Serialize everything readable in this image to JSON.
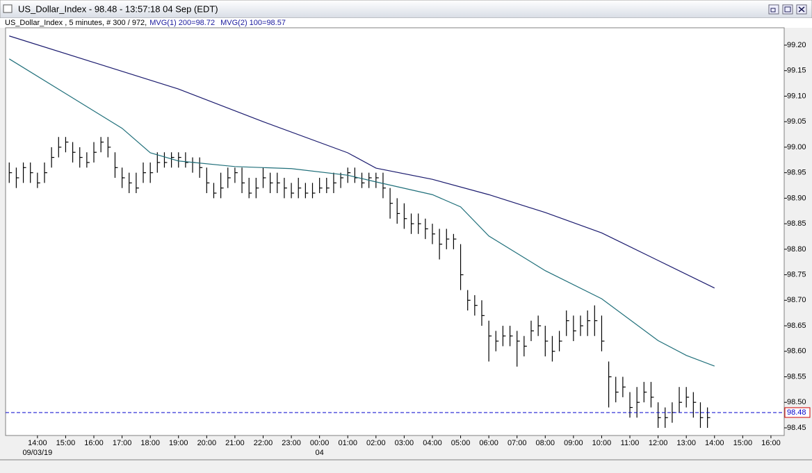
{
  "window": {
    "title": "US_Dollar_Index - 98.48 - 13:57:18  04 Sep (EDT)"
  },
  "chart_data": {
    "type": "ohlc",
    "subtitle": "US_Dollar_Index , 5 minutes, # 300 / 972,",
    "bar_color": "#000000",
    "x": [
      13,
      13.25,
      13.5,
      13.75,
      14,
      14.25,
      14.5,
      14.75,
      15,
      15.25,
      15.5,
      15.75,
      16,
      16.25,
      16.5,
      16.75,
      17,
      17.25,
      17.5,
      17.75,
      18,
      18.25,
      18.5,
      18.75,
      19,
      19.25,
      19.5,
      19.75,
      20,
      20.25,
      20.5,
      20.75,
      21,
      21.25,
      21.5,
      21.75,
      22,
      22.25,
      22.5,
      22.75,
      23,
      23.25,
      23.5,
      23.75,
      24,
      24.25,
      24.5,
      24.75,
      25,
      25.25,
      25.5,
      25.75,
      26,
      26.25,
      26.5,
      26.75,
      27,
      27.25,
      27.5,
      27.75,
      28,
      28.25,
      28.5,
      28.75,
      29,
      29.25,
      29.5,
      29.75,
      30,
      30.25,
      30.5,
      30.75,
      31,
      31.25,
      31.5,
      31.75,
      32,
      32.25,
      32.5,
      32.75,
      33,
      33.25,
      33.5,
      33.75,
      34,
      34.25,
      34.5,
      34.75,
      35,
      35.25,
      35.5,
      35.75,
      36,
      36.25,
      36.5,
      36.75,
      37,
      37.25,
      37.5,
      37.75
    ],
    "high": [
      98.97,
      98.96,
      98.97,
      98.97,
      98.95,
      98.97,
      99.0,
      99.02,
      99.02,
      99.01,
      99.0,
      98.99,
      99.01,
      99.02,
      99.02,
      98.99,
      98.96,
      98.95,
      98.95,
      98.97,
      98.97,
      98.99,
      98.99,
      98.99,
      98.99,
      98.99,
      98.98,
      98.98,
      98.96,
      98.93,
      98.95,
      98.96,
      98.96,
      98.96,
      98.94,
      98.94,
      98.96,
      98.95,
      98.95,
      98.94,
      98.93,
      98.94,
      98.93,
      98.93,
      98.94,
      98.94,
      98.95,
      98.95,
      98.96,
      98.96,
      98.95,
      98.95,
      98.95,
      98.95,
      98.92,
      98.9,
      98.89,
      98.87,
      98.87,
      98.86,
      98.85,
      98.84,
      98.84,
      98.83,
      98.81,
      98.72,
      98.71,
      98.7,
      98.66,
      98.64,
      98.65,
      98.65,
      98.64,
      98.63,
      98.66,
      98.67,
      98.65,
      98.63,
      98.64,
      98.68,
      98.67,
      98.67,
      98.68,
      98.69,
      98.67,
      98.58,
      98.55,
      98.55,
      98.52,
      98.53,
      98.54,
      98.54,
      98.5,
      98.49,
      98.5,
      98.53,
      98.53,
      98.52,
      98.5,
      98.49
    ],
    "low": [
      98.93,
      98.92,
      98.93,
      98.93,
      98.92,
      98.93,
      98.96,
      98.98,
      98.99,
      98.97,
      98.96,
      98.96,
      98.97,
      98.99,
      98.98,
      98.94,
      98.92,
      98.91,
      98.91,
      98.93,
      98.93,
      98.95,
      98.96,
      98.96,
      98.96,
      98.96,
      98.95,
      98.94,
      98.91,
      98.9,
      98.9,
      98.92,
      98.93,
      98.91,
      98.9,
      98.9,
      98.92,
      98.91,
      98.91,
      98.9,
      98.9,
      98.9,
      98.9,
      98.9,
      98.91,
      98.91,
      98.91,
      98.92,
      98.93,
      98.93,
      98.92,
      98.92,
      98.92,
      98.9,
      98.86,
      98.85,
      98.84,
      98.83,
      98.83,
      98.82,
      98.81,
      98.78,
      98.8,
      98.8,
      98.72,
      98.68,
      98.67,
      98.65,
      98.58,
      98.6,
      98.61,
      98.61,
      98.57,
      98.59,
      98.62,
      98.63,
      98.59,
      98.58,
      98.6,
      98.63,
      98.62,
      98.63,
      98.63,
      98.63,
      98.6,
      98.49,
      98.5,
      98.51,
      98.47,
      98.47,
      98.5,
      98.49,
      98.45,
      98.45,
      98.46,
      98.48,
      98.49,
      98.47,
      98.45,
      98.45
    ],
    "close": [
      98.95,
      98.94,
      98.96,
      98.95,
      98.93,
      98.95,
      98.98,
      99.0,
      99.01,
      98.99,
      98.98,
      98.97,
      98.99,
      99.01,
      99.0,
      98.96,
      98.94,
      98.93,
      98.92,
      98.95,
      98.95,
      98.97,
      98.97,
      98.98,
      98.98,
      98.97,
      98.97,
      98.96,
      98.93,
      98.91,
      98.92,
      98.94,
      98.95,
      98.93,
      98.91,
      98.92,
      98.94,
      98.93,
      98.93,
      98.92,
      98.91,
      98.92,
      98.91,
      98.91,
      98.92,
      98.92,
      98.93,
      98.94,
      98.95,
      98.94,
      98.93,
      98.94,
      98.94,
      98.92,
      98.89,
      98.87,
      98.86,
      98.85,
      98.85,
      98.84,
      98.83,
      98.81,
      98.82,
      98.82,
      98.75,
      98.7,
      98.69,
      98.67,
      98.63,
      98.62,
      98.63,
      98.63,
      98.62,
      98.61,
      98.64,
      98.65,
      98.62,
      98.6,
      98.62,
      98.66,
      98.64,
      98.65,
      98.66,
      98.66,
      98.62,
      98.55,
      98.52,
      98.53,
      98.49,
      98.5,
      98.52,
      98.51,
      98.47,
      98.47,
      98.48,
      98.5,
      98.51,
      98.5,
      98.47,
      98.47
    ],
    "series": [
      {
        "name": "MVG(1) 200=98.72",
        "color": "#1a1a6e",
        "x": [
          13,
          16,
          19,
          22,
          25,
          26,
          28,
          30,
          32,
          34,
          36,
          38
        ],
        "values": [
          99.218,
          99.166,
          99.114,
          99.05,
          98.989,
          98.959,
          98.937,
          98.907,
          98.872,
          98.832,
          98.778,
          98.724
        ]
      },
      {
        "name": "MVG(2) 100=98.57",
        "color": "#1f6f7a",
        "x": [
          13,
          15,
          17,
          18,
          19,
          21,
          23,
          25,
          26,
          28,
          29,
          30,
          32,
          34,
          36,
          37,
          38
        ],
        "values": [
          99.173,
          99.105,
          99.037,
          98.989,
          98.973,
          98.962,
          98.958,
          98.945,
          98.932,
          98.907,
          98.883,
          98.826,
          98.758,
          98.703,
          98.621,
          98.592,
          98.571
        ]
      }
    ],
    "last": 98.48,
    "last_color": "#0000cc",
    "xlim": [
      12.87,
      40.47
    ],
    "xticks": [
      {
        "value": 14,
        "label": "14:00"
      },
      {
        "value": 15,
        "label": "15:00"
      },
      {
        "value": 16,
        "label": "16:00"
      },
      {
        "value": 17,
        "label": "17:00"
      },
      {
        "value": 18,
        "label": "18:00"
      },
      {
        "value": 19,
        "label": "19:00"
      },
      {
        "value": 20,
        "label": "20:00"
      },
      {
        "value": 21,
        "label": "21:00"
      },
      {
        "value": 22,
        "label": "22:00"
      },
      {
        "value": 23,
        "label": "23:00"
      },
      {
        "value": 24,
        "label": "00:00"
      },
      {
        "value": 25,
        "label": "01:00"
      },
      {
        "value": 26,
        "label": "02:00"
      },
      {
        "value": 27,
        "label": "03:00"
      },
      {
        "value": 28,
        "label": "04:00"
      },
      {
        "value": 29,
        "label": "05:00"
      },
      {
        "value": 30,
        "label": "06:00"
      },
      {
        "value": 31,
        "label": "07:00"
      },
      {
        "value": 32,
        "label": "08:00"
      },
      {
        "value": 33,
        "label": "09:00"
      },
      {
        "value": 34,
        "label": "10:00"
      },
      {
        "value": 35,
        "label": "11:00"
      },
      {
        "value": 36,
        "label": "12:00"
      },
      {
        "value": 37,
        "label": "13:00"
      },
      {
        "value": 38,
        "label": "14:00"
      },
      {
        "value": 39,
        "label": "15:00"
      },
      {
        "value": 40,
        "label": "16:00"
      }
    ],
    "x_date_labels": [
      {
        "value": 14,
        "label": "09/03/19"
      },
      {
        "value": 24,
        "label": "04"
      }
    ],
    "ylim": [
      98.435,
      99.234
    ],
    "yticks": [
      {
        "value": 99.2,
        "label": "99.20"
      },
      99.15,
      {
        "value": 99.1,
        "label": "99.10"
      },
      99.05,
      {
        "value": 99.0,
        "label": "99.00"
      },
      98.95,
      {
        "value": 98.9,
        "label": "98.90"
      },
      98.85,
      {
        "value": 98.8,
        "label": "98.80"
      },
      98.75,
      {
        "value": 98.7,
        "label": "98.70"
      },
      98.65,
      {
        "value": 98.6,
        "label": "98.60"
      },
      98.55,
      {
        "value": 98.5,
        "label": "98.50"
      },
      98.45
    ]
  }
}
